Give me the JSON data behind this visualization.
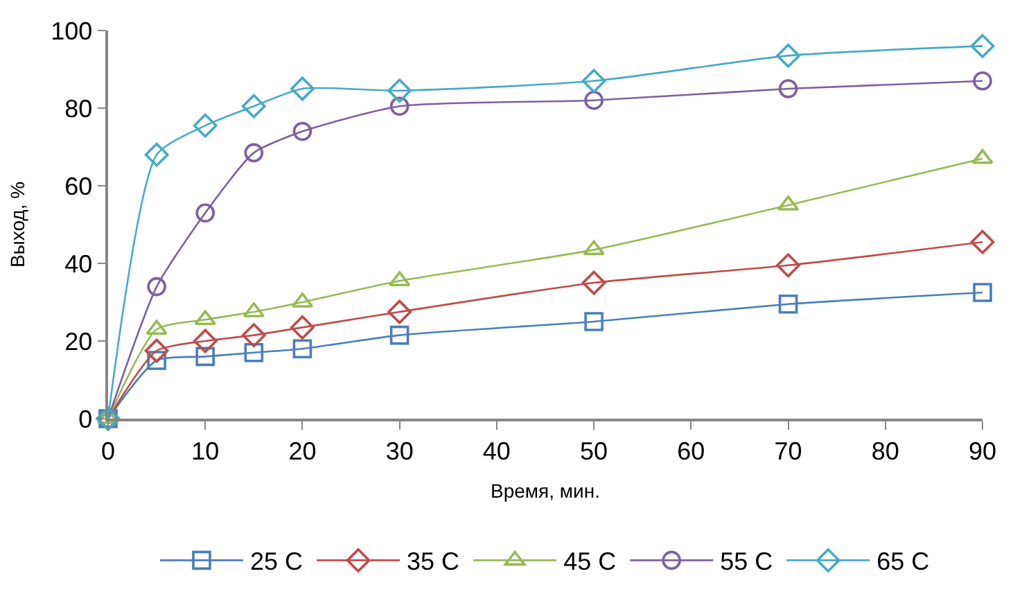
{
  "chart_data": {
    "type": "line",
    "xlabel": "Время, мин.",
    "ylabel": "Выход, %",
    "x": [
      0,
      5,
      10,
      15,
      20,
      30,
      50,
      70,
      90
    ],
    "xlim": [
      0,
      90
    ],
    "xticks": [
      0,
      10,
      20,
      30,
      40,
      50,
      60,
      70,
      80,
      90
    ],
    "ylim": [
      0,
      100
    ],
    "yticks": [
      0,
      20,
      40,
      60,
      80,
      100
    ],
    "legend": "bottom",
    "series": [
      {
        "name": "25 C",
        "color": "#4a7ebb",
        "marker": "square",
        "values": [
          0,
          15,
          16,
          17,
          18,
          21.5,
          25,
          29.5,
          32.5
        ]
      },
      {
        "name": "35 C",
        "color": "#be4b48",
        "marker": "diamond",
        "values": [
          0,
          17.5,
          20,
          21.5,
          23.5,
          27.5,
          35,
          39.5,
          45.5
        ]
      },
      {
        "name": "45 C",
        "color": "#98b954",
        "marker": "triangle",
        "values": [
          0,
          23,
          25.5,
          27.5,
          30,
          35.5,
          43.5,
          55,
          67
        ]
      },
      {
        "name": "55 C",
        "color": "#7d5fa0",
        "marker": "circle",
        "values": [
          0,
          34,
          53,
          68.5,
          74,
          80.5,
          82,
          85,
          87
        ]
      },
      {
        "name": "65 C",
        "color": "#46aac5",
        "marker": "diamond",
        "values": [
          0,
          68,
          75.5,
          80.5,
          85,
          84.5,
          87,
          93.5,
          96
        ]
      }
    ]
  }
}
